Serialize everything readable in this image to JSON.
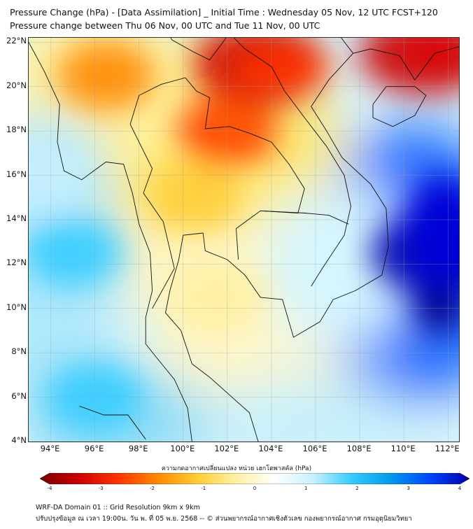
{
  "title": {
    "line1": "Pressure Change (hPa) - [Data Assimilation] _ Initial Time : Wednesday 05 Nov, 12 UTC FCST+120",
    "line2": "Pressure change between Thu 06 Nov, 00 UTC and Tue 11 Nov, 00 UTC"
  },
  "map": {
    "lat_labels": [
      "22°N",
      "20°N",
      "18°N",
      "16°N",
      "14°N",
      "12°N",
      "10°N",
      "8°N",
      "6°N",
      "4°N"
    ],
    "lon_labels": [
      "94°E",
      "96°E",
      "98°E",
      "100°E",
      "102°E",
      "104°E",
      "106°E",
      "108°E",
      "110°E",
      "112°E"
    ],
    "extent": {
      "lon_min": 93,
      "lon_max": 112.5,
      "lat_min": 4,
      "lat_max": 22.2
    },
    "fields": [
      {
        "name": "north-vietnam-high-rise",
        "lon": 103.5,
        "lat": 21.0,
        "value": -3.6
      },
      {
        "name": "upper-laos-rise",
        "lon": 102.0,
        "lat": 18.0,
        "value": -2.7
      },
      {
        "name": "northeast-rise",
        "lon": 111.0,
        "lat": 21.5,
        "value": -3.2
      },
      {
        "name": "burma-plain",
        "lon": 96.5,
        "lat": 20.5,
        "value": -1.5
      },
      {
        "name": "central-thailand",
        "lon": 100.5,
        "lat": 15.0,
        "value": -1.1
      },
      {
        "name": "gulf-thailand",
        "lon": 101.5,
        "lat": 10.5,
        "value": -0.5
      },
      {
        "name": "south-china-sea-low",
        "lon": 111.5,
        "lat": 12.5,
        "value": 4.0
      },
      {
        "name": "andaman-sea",
        "lon": 95.0,
        "lat": 12.5,
        "value": 1.6
      },
      {
        "name": "southern-sea",
        "lon": 96.0,
        "lat": 6.0,
        "value": 1.5
      },
      {
        "name": "far-west",
        "lon": 93.5,
        "lat": 16.0,
        "value": 1.3
      }
    ]
  },
  "colorbar": {
    "title": "ความกดอากาศเปลี่ยนแปลง หน่วย เฮกโตพาสคัล (hPa)",
    "ticks": [
      "-4",
      "-3",
      "-2",
      "-1",
      "0",
      "1",
      "2",
      "3",
      "4"
    ],
    "range": [
      -4,
      4
    ],
    "colors": [
      "#7a0000",
      "#cc0000",
      "#ff3300",
      "#ff8800",
      "#ffcc33",
      "#fff0a0",
      "#ffffff",
      "#c8f0ff",
      "#33ccff",
      "#0099ee",
      "#0044ff",
      "#0000aa"
    ]
  },
  "footer": {
    "line1": "WRF-DA Domain 01 :: Grid Resolution 9km x 9km",
    "line2": "ปรับปรุงข้อมูล ณ เวลา 19:00น. วัน พ. ที่ 05 พ.ย. 2568 -- © ส่วนพยากรณ์อากาศเชิงตัวเลข กองพยากรณ์อากาศ กรมอุตุนิยมวิทยา"
  }
}
